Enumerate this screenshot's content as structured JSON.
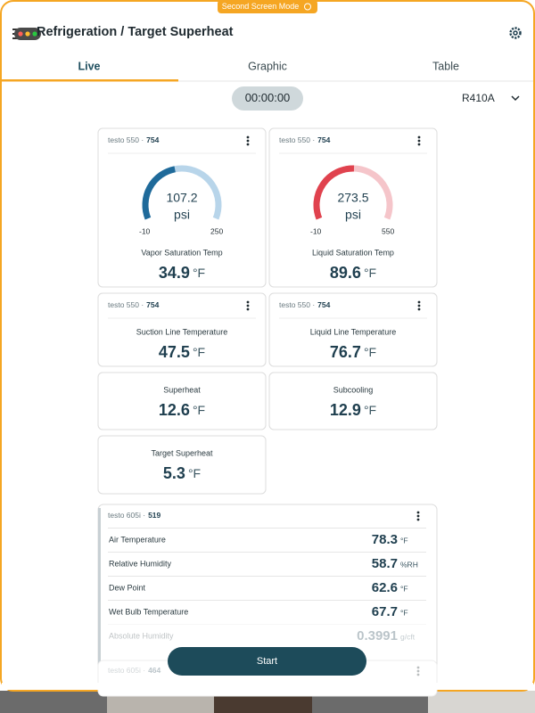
{
  "banner": "Second Screen Mode",
  "header": {
    "title": "Refrigeration / Target Superheat"
  },
  "tabs": [
    "Live",
    "Graphic",
    "Table"
  ],
  "timer": "00:00:00",
  "refrigerant": "R410A",
  "cards": [
    {
      "device": "testo 550 ·",
      "serial": "754",
      "gauge": {
        "value": 107.2,
        "unit": "psi",
        "min": -10,
        "max": 250,
        "color": "#1f6a9a",
        "track": "#b8d5ea"
      },
      "label": "Vapor Saturation Temp",
      "value": 34.9,
      "unit": "°F"
    },
    {
      "device": "testo 550 ·",
      "serial": "754",
      "gauge": {
        "value": 273.5,
        "unit": "psi",
        "min": -10,
        "max": 550,
        "color": "#e0424e",
        "track": "#f5c5ca"
      },
      "label": "Liquid Saturation Temp",
      "value": 89.6,
      "unit": "°F"
    },
    {
      "device": "testo 550 ·",
      "serial": "754",
      "label": "Suction Line Temperature",
      "value": 47.5,
      "unit": "°F"
    },
    {
      "device": "testo 550 ·",
      "serial": "754",
      "label": "Liquid Line Temperature",
      "value": 76.7,
      "unit": "°F"
    },
    {
      "label": "Superheat",
      "value": 12.6,
      "unit": "°F"
    },
    {
      "label": "Subcooling",
      "value": 12.9,
      "unit": "°F"
    },
    {
      "label": "Target Superheat",
      "value": 5.3,
      "unit": "°F"
    }
  ],
  "list_card": {
    "device": "testo 605i ·",
    "serial": "519",
    "rows": [
      {
        "label": "Air Temperature",
        "value": 78.3,
        "unit": "°F"
      },
      {
        "label": "Relative Humidity",
        "value": 58.7,
        "unit": "%RH"
      },
      {
        "label": "Dew Point",
        "value": 62.6,
        "unit": "°F"
      },
      {
        "label": "Wet Bulb Temperature",
        "value": 67.7,
        "unit": "°F"
      },
      {
        "label": "Absolute Humidity",
        "value": 0.3991,
        "unit": "g/cft"
      }
    ]
  },
  "next_card": {
    "device": "testo 605i ·",
    "serial": "464"
  },
  "button": "Start"
}
